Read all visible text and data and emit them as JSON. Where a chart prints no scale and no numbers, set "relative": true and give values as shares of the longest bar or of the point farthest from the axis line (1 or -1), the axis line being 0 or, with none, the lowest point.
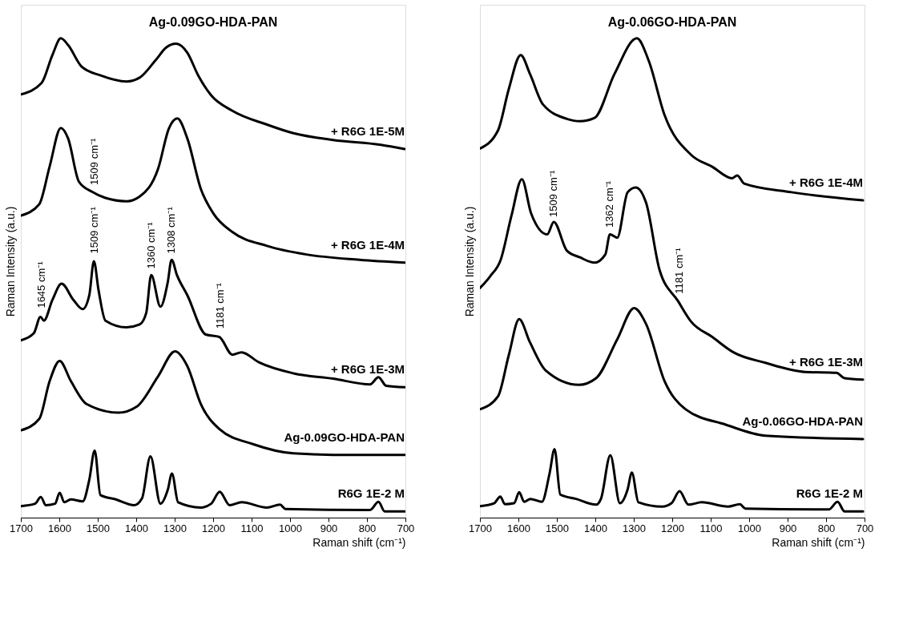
{
  "chart_data": [
    {
      "type": "line",
      "title": "Ag-0.09GO-HDA-PAN",
      "xlabel": "Raman shift (cm⁻¹)",
      "ylabel": "Raman Intensity (a.u.)",
      "relative": true,
      "xlim": [
        1700,
        700
      ],
      "xticks": [
        1700,
        1600,
        1500,
        1400,
        1300,
        1200,
        1100,
        1000,
        900,
        800,
        700
      ],
      "line_style": "solid",
      "series": [
        {
          "name": "+ R6G 1E-5M",
          "color": "#000000",
          "x": [
            1700,
            1646,
            1618,
            1596,
            1577,
            1542,
            1494,
            1425,
            1391,
            1349,
            1322,
            1296,
            1267,
            1239,
            1205,
            1150,
            1060,
            991,
            888,
            764,
            702
          ],
          "values": [
            0.883,
            0.907,
            0.965,
            1.0,
            0.986,
            0.941,
            0.923,
            0.91,
            0.918,
            0.955,
            0.981,
            0.989,
            0.97,
            0.923,
            0.881,
            0.849,
            0.82,
            0.802,
            0.788,
            0.778,
            0.769
          ]
        },
        {
          "name": "+ R6G 1E-4M",
          "color": "#000000",
          "x": [
            1700,
            1652,
            1625,
            1596,
            1577,
            1549,
            1515,
            1480,
            1425,
            1391,
            1343,
            1315,
            1293,
            1267,
            1232,
            1198,
            1150,
            1060,
            957,
            819,
            702
          ],
          "values": [
            0.63,
            0.654,
            0.733,
            0.813,
            0.791,
            0.701,
            0.68,
            0.667,
            0.66,
            0.67,
            0.728,
            0.812,
            0.833,
            0.791,
            0.686,
            0.633,
            0.596,
            0.567,
            0.549,
            0.538,
            0.532
          ]
        },
        {
          "name": "+ R6G 1E-3M",
          "color": "#000000",
          "x": [
            1700,
            1666,
            1649,
            1640,
            1618,
            1594,
            1563,
            1539,
            1522,
            1510,
            1498,
            1480,
            1425,
            1391,
            1374,
            1361,
            1337,
            1318,
            1308,
            1294,
            1267,
            1219,
            1184,
            1150,
            1126,
            1081,
            991,
            888,
            792,
            770,
            750,
            702
          ],
          "values": [
            0.37,
            0.385,
            0.419,
            0.411,
            0.454,
            0.488,
            0.454,
            0.435,
            0.464,
            0.535,
            0.475,
            0.411,
            0.397,
            0.403,
            0.427,
            0.506,
            0.44,
            0.491,
            0.538,
            0.506,
            0.464,
            0.382,
            0.377,
            0.34,
            0.345,
            0.324,
            0.301,
            0.29,
            0.278,
            0.293,
            0.275,
            0.272
          ]
        },
        {
          "name": "Ag-0.09GO-HDA-PAN",
          "color": "#000000",
          "x": [
            1700,
            1652,
            1625,
            1599,
            1570,
            1529,
            1446,
            1398,
            1343,
            1299,
            1267,
            1232,
            1184,
            1095,
            991,
            888,
            702
          ],
          "values": [
            0.182,
            0.206,
            0.285,
            0.327,
            0.285,
            0.237,
            0.219,
            0.232,
            0.295,
            0.347,
            0.316,
            0.237,
            0.185,
            0.153,
            0.134,
            0.131,
            0.131
          ]
        },
        {
          "name": "R6G 1E-2 M",
          "color": "#000000",
          "x": [
            1700,
            1663,
            1648,
            1635,
            1611,
            1599,
            1587,
            1570,
            1539,
            1522,
            1508,
            1493,
            1453,
            1405,
            1385,
            1363,
            1337,
            1318,
            1307,
            1291,
            1232,
            1205,
            1183,
            1157,
            1126,
            1060,
            1026,
            1012,
            792,
            770,
            754,
            702
          ],
          "values": [
            0.024,
            0.029,
            0.043,
            0.026,
            0.029,
            0.052,
            0.032,
            0.038,
            0.034,
            0.079,
            0.14,
            0.047,
            0.038,
            0.026,
            0.04,
            0.128,
            0.029,
            0.058,
            0.092,
            0.032,
            0.021,
            0.029,
            0.054,
            0.026,
            0.032,
            0.021,
            0.027,
            0.018,
            0.016,
            0.033,
            0.013,
            0.013
          ]
        }
      ],
      "annotations": [
        {
          "text": "1509 cm⁻¹",
          "x": 1509,
          "y": 0.684
        },
        {
          "text": "1645 cm⁻¹",
          "x": 1645,
          "y": 0.427
        },
        {
          "text": "1509 cm⁻¹",
          "x": 1509,
          "y": 0.541
        },
        {
          "text": "1360 cm⁻¹",
          "x": 1360,
          "y": 0.509
        },
        {
          "text": "1308 cm⁻¹",
          "x": 1308,
          "y": 0.541
        },
        {
          "text": "1181 cm⁻¹",
          "x": 1181,
          "y": 0.384
        }
      ]
    },
    {
      "type": "line",
      "title": "Ag-0.06GO-HDA-PAN",
      "xlabel": "Raman shift (cm⁻¹)",
      "ylabel": "Raman Intensity (a.u.)",
      "relative": true,
      "xlim": [
        1700,
        700
      ],
      "xticks": [
        1700,
        1600,
        1500,
        1400,
        1300,
        1200,
        1100,
        1000,
        900,
        800,
        700
      ],
      "line_style": "solid",
      "series": [
        {
          "name": "+ R6G 1E-4M",
          "color": "#000000",
          "x": [
            1700,
            1653,
            1625,
            1594,
            1570,
            1536,
            1474,
            1440,
            1402,
            1350,
            1292,
            1261,
            1220,
            1151,
            1096,
            1044,
            1031,
            1013,
            890,
            704
          ],
          "values": [
            0.77,
            0.808,
            0.894,
            0.965,
            0.926,
            0.862,
            0.832,
            0.827,
            0.834,
            0.926,
            1.0,
            0.953,
            0.84,
            0.757,
            0.732,
            0.708,
            0.714,
            0.697,
            0.679,
            0.662
          ]
        },
        {
          "name": "+ R6G 1E-3M",
          "color": "#000000",
          "x": [
            1700,
            1673,
            1646,
            1618,
            1591,
            1567,
            1525,
            1508,
            1474,
            1440,
            1402,
            1374,
            1362,
            1343,
            1316,
            1295,
            1268,
            1233,
            1185,
            1151,
            1096,
            1041,
            958,
            855,
            773,
            752,
            704
          ],
          "values": [
            0.479,
            0.504,
            0.538,
            0.63,
            0.706,
            0.635,
            0.591,
            0.617,
            0.557,
            0.543,
            0.532,
            0.549,
            0.591,
            0.584,
            0.679,
            0.689,
            0.657,
            0.517,
            0.452,
            0.409,
            0.377,
            0.345,
            0.323,
            0.304,
            0.302,
            0.291,
            0.288
          ]
        },
        {
          "name": "Ag-0.06GO-HDA-PAN",
          "color": "#000000",
          "x": [
            1700,
            1653,
            1625,
            1598,
            1570,
            1529,
            1443,
            1398,
            1343,
            1299,
            1268,
            1220,
            1165,
            1061,
            958,
            704
          ],
          "values": [
            0.226,
            0.253,
            0.339,
            0.414,
            0.366,
            0.307,
            0.277,
            0.291,
            0.372,
            0.437,
            0.404,
            0.285,
            0.226,
            0.194,
            0.171,
            0.164
          ]
        },
        {
          "name": "R6G 1E-2 M",
          "color": "#000000",
          "x": [
            1700,
            1663,
            1647,
            1635,
            1611,
            1598,
            1585,
            1569,
            1539,
            1519,
            1506,
            1491,
            1450,
            1398,
            1385,
            1361,
            1336,
            1316,
            1305,
            1288,
            1226,
            1202,
            1181,
            1158,
            1123,
            1055,
            1024,
            1010,
            793,
            770,
            752,
            704
          ],
          "values": [
            0.024,
            0.03,
            0.044,
            0.028,
            0.03,
            0.053,
            0.033,
            0.039,
            0.033,
            0.092,
            0.143,
            0.048,
            0.039,
            0.027,
            0.04,
            0.13,
            0.03,
            0.059,
            0.094,
            0.032,
            0.023,
            0.03,
            0.055,
            0.027,
            0.032,
            0.023,
            0.028,
            0.019,
            0.017,
            0.033,
            0.013,
            0.013
          ]
        }
      ],
      "annotations": [
        {
          "text": "1509 cm⁻¹",
          "x": 1509,
          "y": 0.617
        },
        {
          "text": "1362 cm⁻¹",
          "x": 1362,
          "y": 0.595
        },
        {
          "text": "1181 cm⁻¹",
          "x": 1181,
          "y": 0.457
        }
      ]
    }
  ]
}
